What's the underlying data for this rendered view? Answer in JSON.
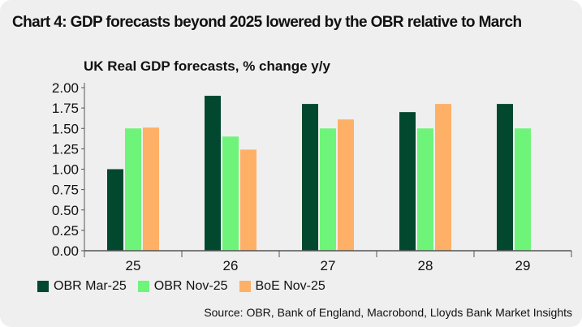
{
  "chart_data": {
    "type": "bar",
    "title": "Chart 4: GDP forecasts beyond 2025 lowered by the OBR relative to March",
    "subtitle": "UK Real GDP forecasts, % change y/y",
    "categories": [
      "25",
      "26",
      "27",
      "28",
      "29"
    ],
    "series": [
      {
        "name": "OBR Mar-25",
        "color": "#02482f",
        "values": [
          1.0,
          1.9,
          1.8,
          1.7,
          1.8
        ]
      },
      {
        "name": "OBR Nov-25",
        "color": "#6ff47a",
        "values": [
          1.5,
          1.4,
          1.5,
          1.5,
          1.5
        ]
      },
      {
        "name": "BoE Nov-25",
        "color": "#ffb067",
        "values": [
          1.51,
          1.24,
          1.61,
          1.8,
          null
        ]
      }
    ],
    "yticks": [
      "0.00",
      "0.25",
      "0.50",
      "0.75",
      "1.00",
      "1.25",
      "1.50",
      "1.75",
      "2.00"
    ],
    "ylim": [
      0,
      2.0
    ],
    "xlabel": "",
    "ylabel": "",
    "legend": "bottom-left",
    "grid": false,
    "source": "Source: OBR, Bank of England, Macrobond, Lloyds Bank Market Insights"
  }
}
